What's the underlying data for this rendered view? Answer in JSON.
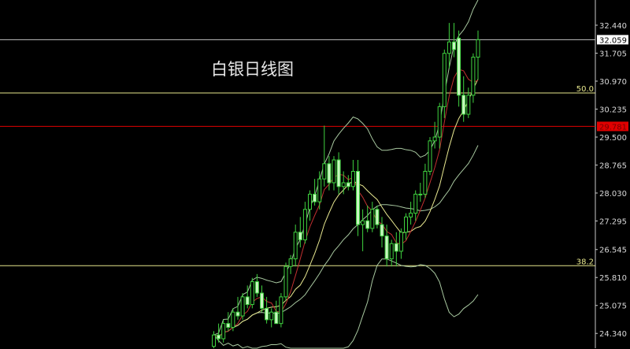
{
  "title": "白银日线图",
  "chart_data": {
    "type": "candlestick",
    "title": "白银日线图",
    "ylim": [
      24.1,
      32.9
    ],
    "y_ticks": [
      "32.440",
      "31.705",
      "30.970",
      "30.235",
      "29.500",
      "28.765",
      "28.030",
      "27.295",
      "26.545",
      "25.810",
      "25.075",
      "24.340"
    ],
    "grid": false,
    "current_price": {
      "label": "32.059",
      "value": 32.059,
      "color": "#c0c0c0"
    },
    "levels": [
      {
        "label": "50.0",
        "value": 30.66,
        "color": "#e6e68c"
      },
      {
        "label": "38.2",
        "value": 26.12,
        "color": "#e6e68c"
      },
      {
        "label": "29.781",
        "value": 29.781,
        "color": "#e00000"
      }
    ],
    "candles": [
      [
        24.0,
        24.4,
        23.9,
        24.3
      ],
      [
        24.3,
        24.6,
        24.1,
        24.2
      ],
      [
        24.2,
        24.7,
        24.1,
        24.6
      ],
      [
        24.6,
        24.9,
        24.4,
        24.5
      ],
      [
        24.5,
        25.0,
        24.4,
        24.9
      ],
      [
        24.9,
        25.3,
        24.7,
        24.8
      ],
      [
        24.8,
        25.4,
        24.7,
        25.3
      ],
      [
        25.3,
        25.6,
        25.0,
        25.1
      ],
      [
        25.1,
        25.8,
        25.0,
        25.7
      ],
      [
        25.7,
        25.9,
        25.3,
        25.4
      ],
      [
        25.4,
        25.6,
        24.9,
        25.0
      ],
      [
        25.0,
        25.3,
        24.6,
        24.7
      ],
      [
        24.7,
        25.0,
        24.5,
        24.9
      ],
      [
        24.9,
        25.2,
        24.6,
        24.6
      ],
      [
        24.6,
        25.4,
        24.5,
        25.3
      ],
      [
        25.3,
        26.2,
        25.2,
        26.1
      ],
      [
        26.1,
        26.4,
        25.9,
        26.3
      ],
      [
        26.3,
        27.2,
        26.1,
        27.0
      ],
      [
        27.0,
        27.4,
        26.6,
        26.8
      ],
      [
        26.8,
        27.8,
        26.7,
        27.6
      ],
      [
        27.6,
        28.1,
        27.3,
        28.0
      ],
      [
        28.0,
        28.4,
        27.7,
        27.8
      ],
      [
        27.8,
        28.6,
        27.6,
        28.4
      ],
      [
        28.4,
        29.8,
        28.2,
        28.8
      ],
      [
        28.8,
        29.0,
        28.1,
        28.3
      ],
      [
        28.3,
        29.0,
        28.1,
        28.9
      ],
      [
        28.9,
        29.1,
        28.0,
        28.2
      ],
      [
        28.2,
        28.6,
        28.0,
        28.3
      ],
      [
        28.3,
        28.5,
        28.1,
        28.2
      ],
      [
        28.2,
        28.9,
        28.1,
        28.6
      ],
      [
        28.6,
        28.9,
        26.9,
        27.2
      ],
      [
        27.2,
        27.6,
        26.5,
        27.3
      ],
      [
        27.3,
        27.7,
        27.0,
        27.1
      ],
      [
        27.1,
        27.8,
        27.0,
        27.6
      ],
      [
        27.6,
        27.7,
        27.1,
        27.2
      ],
      [
        27.2,
        27.4,
        26.6,
        26.9
      ],
      [
        26.9,
        27.2,
        26.1,
        26.3
      ],
      [
        26.3,
        26.8,
        26.1,
        26.7
      ],
      [
        26.7,
        27.0,
        26.1,
        26.5
      ],
      [
        26.5,
        27.1,
        26.3,
        27.0
      ],
      [
        27.0,
        27.5,
        26.8,
        27.4
      ],
      [
        27.4,
        27.8,
        27.2,
        27.5
      ],
      [
        27.5,
        28.1,
        27.3,
        28.0
      ],
      [
        28.0,
        28.3,
        27.8,
        28.0
      ],
      [
        28.0,
        28.8,
        27.9,
        28.6
      ],
      [
        28.6,
        29.5,
        28.5,
        29.4
      ],
      [
        29.4,
        29.9,
        29.2,
        29.5
      ],
      [
        29.5,
        30.4,
        29.2,
        30.3
      ],
      [
        30.3,
        31.8,
        30.0,
        31.7
      ],
      [
        31.7,
        32.5,
        31.3,
        32.0
      ],
      [
        32.0,
        32.5,
        31.6,
        31.8
      ],
      [
        32.1,
        32.3,
        30.3,
        30.6
      ],
      [
        30.6,
        31.1,
        29.9,
        30.1
      ],
      [
        30.1,
        30.8,
        30.0,
        30.6
      ],
      [
        30.6,
        31.7,
        30.4,
        31.6
      ],
      [
        31.6,
        32.3,
        31.0,
        32.059
      ]
    ],
    "colors": {
      "bull": "#3fd23f",
      "bear": "#c8f5c0",
      "ma_fast": "#c03030",
      "ma_slow": "#e8e890",
      "bands": "#a8c8a0"
    }
  }
}
